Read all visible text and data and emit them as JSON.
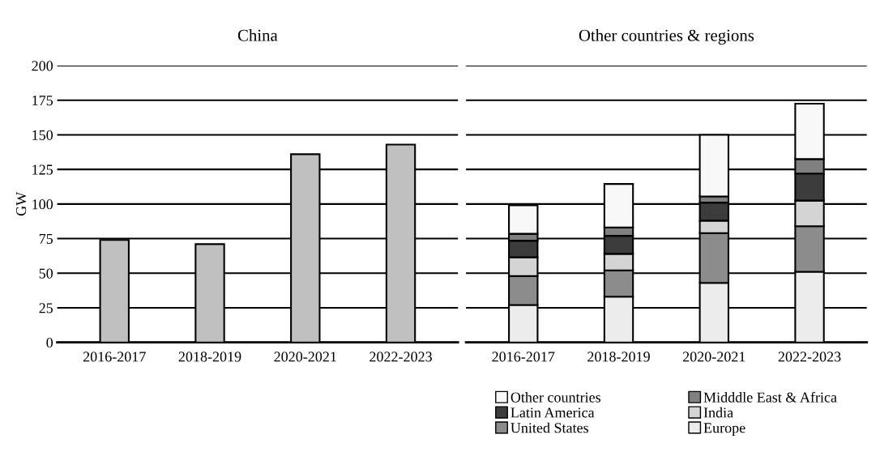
{
  "chart_data": [
    {
      "type": "bar",
      "title": "China",
      "ylabel": "GW",
      "categories": [
        "2016-2017",
        "2018-2019",
        "2020-2021",
        "2022-2023"
      ],
      "values": [
        74,
        71,
        136,
        143
      ],
      "color": "#c0c0c0",
      "ylim": [
        0,
        200
      ],
      "yticks": [
        0,
        25,
        50,
        75,
        100,
        125,
        150,
        175,
        200
      ],
      "grid": "y"
    },
    {
      "type": "bar",
      "title": "Other countries & regions",
      "categories": [
        "2016-2017",
        "2018-2019",
        "2020-2021",
        "2022-2023"
      ],
      "stacked": true,
      "ylim": [
        0,
        200
      ],
      "yticks": [
        0,
        25,
        50,
        75,
        100,
        125,
        150,
        175,
        200
      ],
      "grid": "y",
      "tick_labels": "x",
      "legend": "bottom",
      "series": [
        {
          "name": "Europe",
          "color": "#ececec",
          "values": [
            27,
            33,
            43,
            51
          ]
        },
        {
          "name": "United States",
          "color": "#8c8c8c",
          "values": [
            21,
            19,
            36,
            33
          ]
        },
        {
          "name": "India",
          "color": "#d4d4d4",
          "values": [
            13.5,
            12,
            9,
            18.5
          ]
        },
        {
          "name": "Latin America",
          "color": "#3c3c3c",
          "values": [
            12,
            13,
            13,
            19.5
          ]
        },
        {
          "name": "Midddle East & Africa",
          "color": "#808080",
          "values": [
            5,
            6,
            4.5,
            10.5
          ]
        },
        {
          "name": "Other countries",
          "color": "#f8f8f8",
          "values": [
            20.5,
            31.5,
            44.5,
            40
          ]
        }
      ]
    }
  ]
}
